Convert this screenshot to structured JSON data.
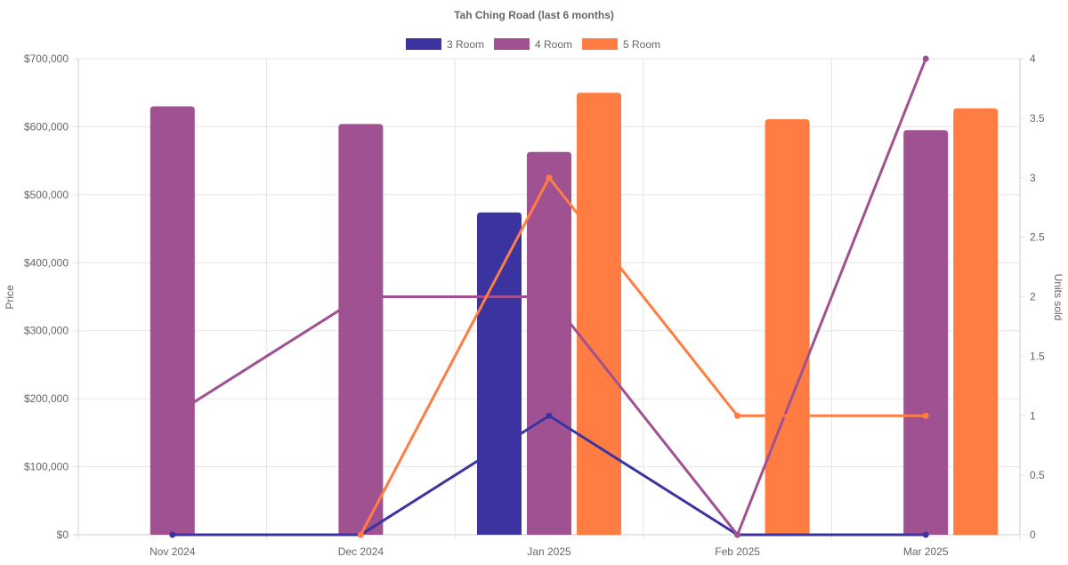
{
  "chart_data": {
    "type": "bar",
    "title": "Tah Ching Road (last 6 months)",
    "categories": [
      "Nov 2024",
      "Dec 2024",
      "Jan 2025",
      "Feb 2025",
      "Mar 2025"
    ],
    "ylabel": "Price",
    "y2label": "Units sold",
    "ylim": [
      0,
      700000
    ],
    "y2lim": [
      0,
      4
    ],
    "yticks": [
      "$0",
      "$100,000",
      "$200,000",
      "$300,000",
      "$400,000",
      "$500,000",
      "$600,000",
      "$700,000"
    ],
    "y2ticks": [
      "0",
      "0.5",
      "1",
      "1.5",
      "2",
      "2.5",
      "3",
      "3.5",
      "4"
    ],
    "legend_position": "top",
    "series": [
      {
        "name": "3 Room",
        "color": "#3a33a0",
        "price": [
          null,
          null,
          474000,
          null,
          null
        ],
        "units": [
          0,
          0,
          1,
          0,
          0
        ]
      },
      {
        "name": "4 Room",
        "color": "#a05192",
        "price": [
          630000,
          604000,
          563000,
          null,
          595000
        ],
        "units": [
          1,
          2,
          2,
          0,
          4
        ]
      },
      {
        "name": "5 Room",
        "color": "#ff7c43",
        "price": [
          null,
          null,
          650000,
          611000,
          627000
        ],
        "units": [
          null,
          0,
          3,
          1,
          1
        ]
      }
    ]
  }
}
